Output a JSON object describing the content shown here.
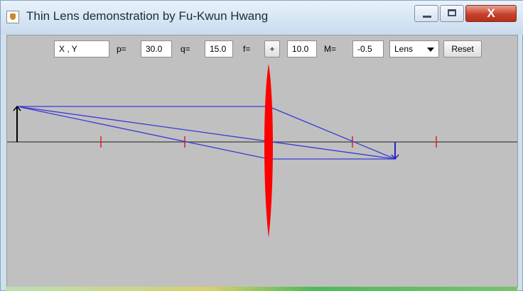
{
  "window": {
    "title": "Thin Lens demonstration by Fu-Kwun Hwang",
    "controls": [
      "minimize",
      "maximize",
      "close"
    ],
    "close_glyph": "X"
  },
  "toolbar": {
    "coords": "X , Y",
    "p_label": "p=",
    "p_value": "30.0",
    "q_label": "q=",
    "q_value": "15.0",
    "f_label": "f=",
    "f_sign": "+",
    "f_value": "10.0",
    "m_label": "M=",
    "m_value": "-0.5",
    "type_select": "Lens",
    "reset_label": "Reset"
  },
  "scene": {
    "object_distance_p": 30.0,
    "image_distance_q": 15.0,
    "focal_length_f": 10.0,
    "magnification": -0.5,
    "element": "converging lens",
    "colors": {
      "background": "#c0c0c0",
      "axis": "#555555",
      "focal_marks": "#e02020",
      "rays": "#3a3ad6",
      "lens": "#ff0000",
      "object": "#000000",
      "image": "#2323c8"
    },
    "icons": {
      "app": "java-coffee-cup-icon"
    }
  }
}
